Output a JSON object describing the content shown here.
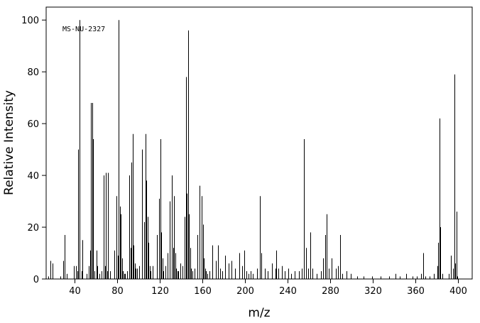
{
  "chart_data": {
    "type": "stem",
    "annotation": "MS-NU-2327",
    "xlabel": "m/z",
    "ylabel": "Relative Intensity",
    "xlim": [
      13,
      413
    ],
    "ylim": [
      0,
      105
    ],
    "xticks": [
      40,
      80,
      120,
      160,
      200,
      240,
      280,
      320,
      360,
      400
    ],
    "yticks": [
      0,
      20,
      40,
      60,
      80,
      100
    ],
    "color": "#000000",
    "x": [
      15,
      17,
      19,
      26,
      29,
      30,
      32,
      39,
      41,
      42,
      43,
      44,
      46,
      47,
      51,
      53,
      54,
      55,
      56,
      57,
      58,
      60,
      61,
      63,
      65,
      67,
      68,
      69,
      70,
      71,
      73,
      77,
      79,
      80,
      81,
      82,
      83,
      84,
      85,
      86,
      87,
      89,
      91,
      92,
      93,
      94,
      95,
      96,
      97,
      98,
      100,
      103,
      105,
      106,
      107,
      108,
      109,
      110,
      111,
      113,
      117,
      119,
      120,
      121,
      122,
      123,
      125,
      127,
      129,
      131,
      132,
      133,
      134,
      135,
      136,
      137,
      139,
      141,
      143,
      144,
      145,
      146,
      147,
      148,
      149,
      150,
      152,
      155,
      157,
      159,
      160,
      161,
      162,
      163,
      164,
      166,
      169,
      172,
      174,
      176,
      178,
      181,
      184,
      187,
      190,
      194,
      197,
      199,
      201,
      203,
      205,
      207,
      211,
      214,
      215,
      218,
      221,
      225,
      228,
      229,
      231,
      234,
      237,
      240,
      243,
      246,
      250,
      253,
      255,
      257,
      259,
      261,
      263,
      267,
      271,
      273,
      275,
      276,
      278,
      281,
      285,
      287,
      289,
      291,
      295,
      299,
      305,
      311,
      319,
      327,
      335,
      341,
      345,
      351,
      357,
      361,
      365,
      367,
      369,
      373,
      377,
      380,
      381,
      382,
      383,
      385,
      391,
      393,
      395,
      396,
      397,
      398,
      399
    ],
    "values": [
      1,
      7,
      6,
      1,
      7,
      17,
      2,
      5,
      5,
      3,
      50,
      100,
      3,
      15,
      2,
      5,
      11,
      68,
      68,
      54,
      3,
      11,
      5,
      2,
      3,
      40,
      5,
      41,
      3,
      41,
      3,
      11,
      32,
      9,
      100,
      28,
      25,
      8,
      3,
      2,
      2,
      3,
      40,
      12,
      45,
      56,
      13,
      6,
      4,
      4,
      5,
      50,
      22,
      56,
      38,
      24,
      14,
      5,
      3,
      5,
      17,
      31,
      54,
      18,
      8,
      3,
      5,
      10,
      30,
      40,
      12,
      32,
      10,
      4,
      3,
      3,
      6,
      5,
      24,
      78,
      33,
      96,
      25,
      12,
      4,
      3,
      4,
      17,
      36,
      32,
      21,
      8,
      4,
      3,
      2,
      3,
      13,
      7,
      13,
      4,
      3,
      9,
      6,
      7,
      4,
      10,
      5,
      11,
      3,
      2,
      3,
      2,
      4,
      32,
      10,
      4,
      3,
      6,
      4,
      11,
      4,
      5,
      3,
      4,
      2,
      3,
      3,
      4,
      54,
      12,
      4,
      18,
      4,
      2,
      3,
      8,
      17,
      25,
      4,
      8,
      4,
      5,
      17,
      2,
      3,
      2,
      1,
      1,
      1,
      1,
      1,
      2,
      1,
      2,
      1,
      1,
      2,
      10,
      1,
      1,
      2,
      5,
      14,
      62,
      20,
      2,
      2,
      9,
      4,
      79,
      6,
      26,
      1
    ]
  }
}
